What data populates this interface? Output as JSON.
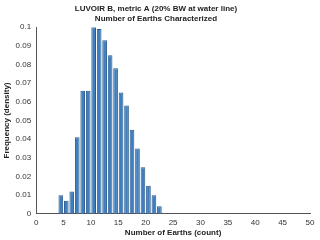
{
  "chart_data": {
    "type": "histogram",
    "title": [
      "LUVOIR B, metric A (20% BW at water line)",
      "Number of Earths Characterized"
    ],
    "x_label": "Number of Earths (count)",
    "y_label": "Frequency (density)",
    "bins": [
      4,
      5,
      6,
      7,
      8,
      9,
      10,
      11,
      12,
      13,
      14,
      15,
      16,
      17,
      18,
      19,
      20,
      21,
      22,
      23
    ],
    "values": [
      0.01,
      0.007,
      0.012,
      0.041,
      0.066,
      0.066,
      0.1,
      0.099,
      0.093,
      0.085,
      0.078,
      0.065,
      0.058,
      0.045,
      0.035,
      0.025,
      0.015,
      0.01,
      0.004
    ],
    "color": "#3f7fbf",
    "xlim": [
      0,
      50
    ],
    "xticks": [
      0,
      5,
      10,
      15,
      20,
      25,
      30,
      35,
      40,
      45,
      50
    ],
    "ylim": [
      0,
      0.1
    ],
    "yticks": [
      0,
      0.01,
      0.02,
      0.03,
      0.04,
      0.05,
      0.06,
      0.07,
      0.08,
      0.09,
      0.1
    ],
    "grid": false
  }
}
